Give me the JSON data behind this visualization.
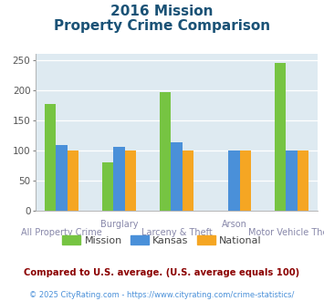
{
  "title_line1": "2016 Mission",
  "title_line2": "Property Crime Comparison",
  "top_labels": {
    "1": "Burglary",
    "3": "Arson"
  },
  "bot_labels": {
    "0": "All Property Crime",
    "2": "Larceny & Theft",
    "4": "Motor Vehicle Theft"
  },
  "vals_mission": [
    178,
    81,
    197,
    0,
    245
  ],
  "vals_kansas": [
    109,
    106,
    113,
    100,
    100
  ],
  "vals_national": [
    100,
    100,
    100,
    100,
    100
  ],
  "color_mission": "#76c442",
  "color_kansas": "#4a90d9",
  "color_national": "#f5a623",
  "ylim": [
    0,
    260
  ],
  "yticks": [
    0,
    50,
    100,
    150,
    200,
    250
  ],
  "note": "Compared to U.S. average. (U.S. average equals 100)",
  "footer": "© 2025 CityRating.com - https://www.cityrating.com/crime-statistics/",
  "background_color": "#deeaf1",
  "title_color": "#1a5276",
  "note_color": "#8b0000",
  "footer_color": "#4a90d9",
  "bar_width": 0.2
}
